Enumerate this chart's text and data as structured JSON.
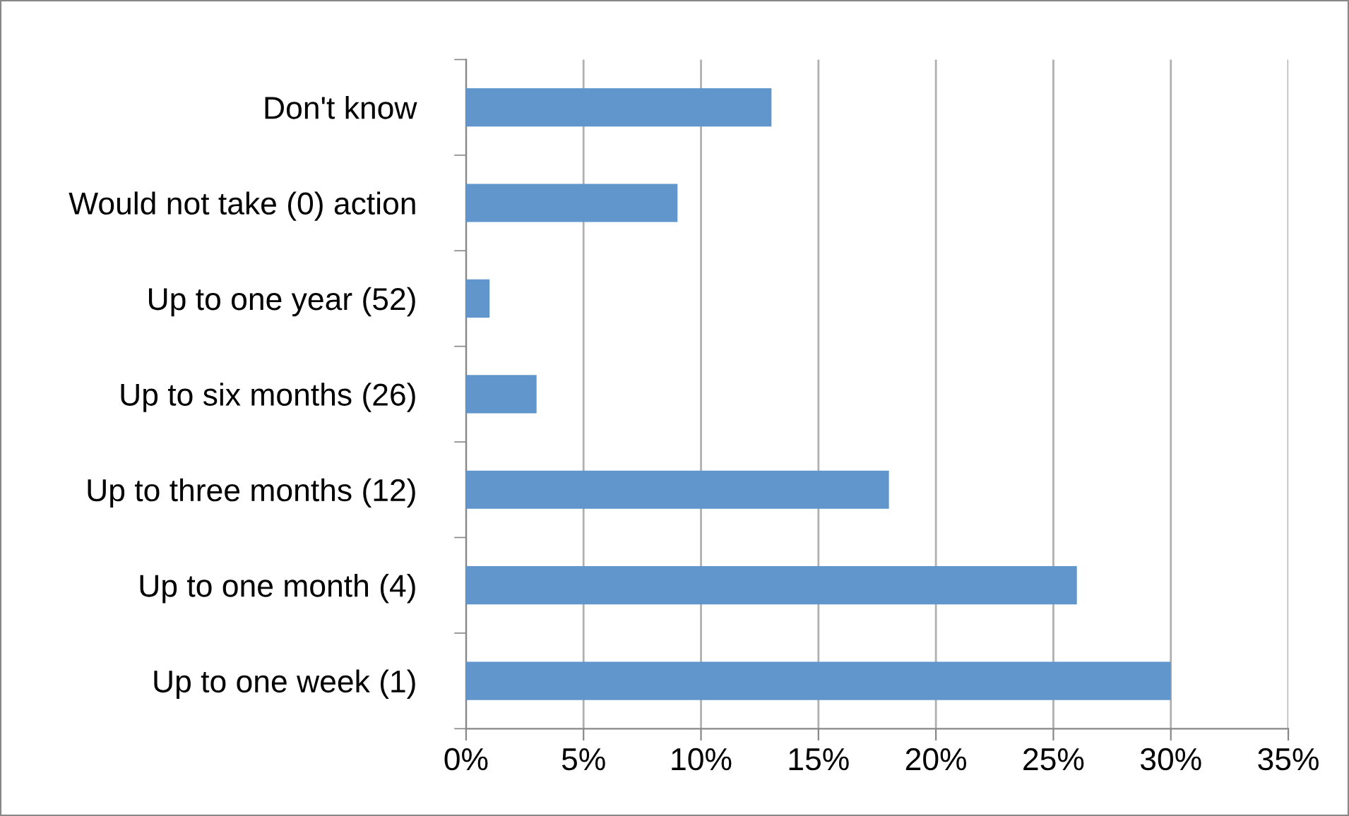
{
  "chart_data": {
    "type": "bar",
    "orientation": "horizontal",
    "categories": [
      "Don't know",
      "Would not take (0) action",
      "Up to one year (52)",
      "Up to six months (26)",
      "Up to three months (12)",
      "Up to one month (4)",
      "Up to one week (1)"
    ],
    "values": [
      13,
      9,
      1,
      3,
      18,
      26,
      30
    ],
    "color": "#6096cc",
    "xlim": [
      0,
      35
    ],
    "xticks": [
      {
        "value": 0,
        "label": "0%"
      },
      {
        "value": 5,
        "label": "5%"
      },
      {
        "value": 10,
        "label": "10%"
      },
      {
        "value": 15,
        "label": "15%"
      },
      {
        "value": 20,
        "label": "20%"
      },
      {
        "value": 25,
        "label": "25%"
      },
      {
        "value": 30,
        "label": "30%"
      },
      {
        "value": 35,
        "label": "35%"
      }
    ],
    "grid": "x",
    "legend": false
  }
}
